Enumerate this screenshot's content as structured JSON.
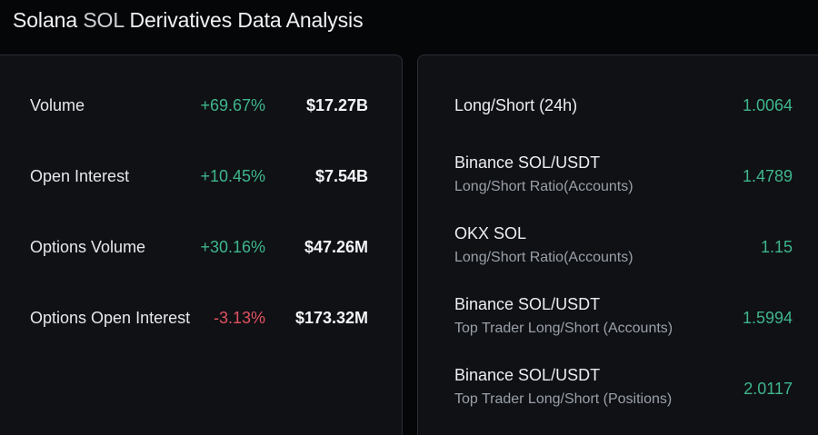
{
  "header": {
    "title_part1": "Solana ",
    "title_accent": "SOL",
    "title_part2": " Derivatives Data Analysis"
  },
  "colors": {
    "positive": "#3fb68b",
    "negative": "#e05260",
    "background": "#050608",
    "panel": "#0f1115"
  },
  "left_panel": {
    "rows": [
      {
        "label": "Volume",
        "change": "+69.67%",
        "value": "$17.27B"
      },
      {
        "label": "Open Interest",
        "change": "+10.45%",
        "value": "$7.54B"
      },
      {
        "label": "Options Volume",
        "change": "+30.16%",
        "value": "$47.26M"
      },
      {
        "label": "Options Open Interest",
        "change": "-3.13%",
        "value": "$173.32M"
      }
    ]
  },
  "right_panel": {
    "rows": [
      {
        "label": "Long/Short (24h)",
        "sublabel": "",
        "value": "1.0064"
      },
      {
        "label": "Binance SOL/USDT",
        "sublabel": "Long/Short Ratio(Accounts)",
        "value": "1.4789"
      },
      {
        "label": "OKX SOL",
        "sublabel": "Long/Short Ratio(Accounts)",
        "value": "1.15"
      },
      {
        "label": "Binance SOL/USDT",
        "sublabel": "Top Trader Long/Short (Accounts)",
        "value": "1.5994"
      },
      {
        "label": "Binance SOL/USDT",
        "sublabel": "Top Trader Long/Short (Positions)",
        "value": "2.0117"
      }
    ]
  }
}
